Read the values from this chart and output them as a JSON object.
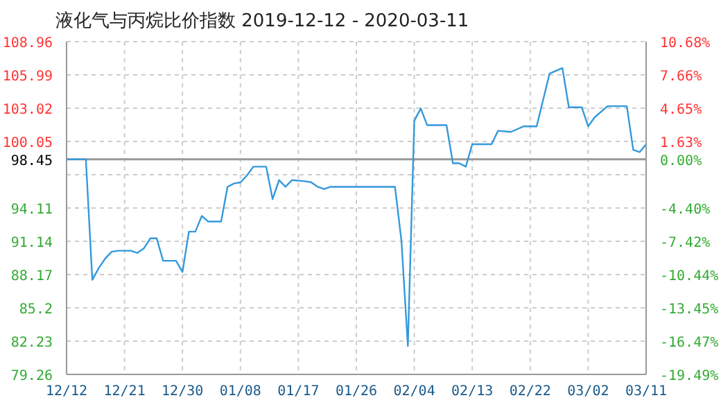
{
  "chart_data": {
    "type": "line",
    "title": "液化气与丙烷比价指数 2019-12-12 - 2020-03-11",
    "x": [
      "2019-12-12",
      "2019-12-15",
      "2019-12-16",
      "2019-12-17",
      "2019-12-18",
      "2019-12-19",
      "2019-12-20",
      "2019-12-22",
      "2019-12-23",
      "2019-12-24",
      "2019-12-25",
      "2019-12-26",
      "2019-12-27",
      "2019-12-29",
      "2019-12-30",
      "2019-12-31",
      "2020-01-01",
      "2020-01-02",
      "2020-01-03",
      "2020-01-05",
      "2020-01-06",
      "2020-01-07",
      "2020-01-08",
      "2020-01-09",
      "2020-01-10",
      "2020-01-12",
      "2020-01-13",
      "2020-01-14",
      "2020-01-15",
      "2020-01-16",
      "2020-01-18",
      "2020-01-19",
      "2020-01-20",
      "2020-01-21",
      "2020-01-22",
      "2020-02-01",
      "2020-02-02",
      "2020-02-03",
      "2020-02-04",
      "2020-02-05",
      "2020-02-06",
      "2020-02-09",
      "2020-02-10",
      "2020-02-11",
      "2020-02-12",
      "2020-02-13",
      "2020-02-16",
      "2020-02-17",
      "2020-02-19",
      "2020-02-21",
      "2020-02-23",
      "2020-02-25",
      "2020-02-27",
      "2020-02-28",
      "2020-03-01",
      "2020-03-02",
      "2020-03-03",
      "2020-03-05",
      "2020-03-08",
      "2020-03-09",
      "2020-03-10",
      "2020-03-11"
    ],
    "series": [
      {
        "color": "#3399dd",
        "values": [
          98.45,
          98.45,
          87.7,
          88.75,
          89.6,
          90.2,
          90.3,
          90.3,
          90.1,
          90.5,
          91.4,
          91.4,
          89.4,
          89.4,
          88.4,
          92.0,
          92.0,
          93.4,
          92.9,
          92.9,
          96.0,
          96.3,
          96.4,
          97.0,
          97.8,
          97.8,
          94.9,
          96.6,
          96.0,
          96.6,
          96.5,
          96.4,
          96.0,
          95.8,
          96.0,
          96.0,
          91.2,
          81.8,
          101.9,
          103.0,
          101.5,
          101.5,
          98.1,
          98.1,
          97.8,
          99.8,
          99.8,
          101.0,
          100.9,
          101.4,
          101.4,
          106.1,
          106.6,
          103.1,
          103.1,
          101.4,
          102.2,
          103.2,
          103.2,
          99.3,
          99.1,
          99.8
        ]
      }
    ],
    "xlim": [
      "2019-12-12",
      "2020-03-11"
    ],
    "xticks": [
      {
        "value": "2019-12-12",
        "label": "12/12"
      },
      {
        "value": "2019-12-21",
        "label": "12/21"
      },
      {
        "value": "2019-12-30",
        "label": "12/30"
      },
      {
        "value": "2020-01-08",
        "label": "01/08"
      },
      {
        "value": "2020-01-17",
        "label": "01/17"
      },
      {
        "value": "2020-01-26",
        "label": "01/26"
      },
      {
        "value": "2020-02-04",
        "label": "02/04"
      },
      {
        "value": "2020-02-13",
        "label": "02/13"
      },
      {
        "value": "2020-02-22",
        "label": "02/22"
      },
      {
        "value": "2020-03-02",
        "label": "03/02"
      },
      {
        "value": "2020-03-11",
        "label": "03/11"
      }
    ],
    "ylim": [
      79.26,
      108.96
    ],
    "yticks": [
      79.26,
      82.23,
      85.2,
      88.17,
      91.14,
      94.11,
      {
        "value": 97.08,
        "label": null
      },
      98.45,
      100.05,
      103.02,
      105.99,
      108.96
    ],
    "y2lim": [
      -19.49,
      10.68
    ],
    "y2ticks": [
      {
        "value": -19.49,
        "label": "-19.49%"
      },
      {
        "value": -16.47,
        "label": "-16.47%"
      },
      {
        "value": -13.45,
        "label": "-13.45%"
      },
      {
        "value": -10.44,
        "label": "-10.44%"
      },
      {
        "value": -7.42,
        "label": "-7.42%"
      },
      {
        "value": -4.4,
        "label": "-4.40%"
      },
      {
        "value": -1.39,
        "label": null
      },
      {
        "value": 0,
        "label": "0.00%"
      },
      {
        "value": 1.63,
        "label": "1.63%"
      },
      {
        "value": 4.65,
        "label": "4.65%"
      },
      {
        "value": 7.66,
        "label": "7.66%"
      },
      {
        "value": 10.68,
        "label": "10.68%"
      }
    ],
    "ref_lines": [
      {
        "axis": "y",
        "value": 98.45,
        "color": "#999999"
      }
    ],
    "grid": true,
    "marker": "none",
    "line_style": "solid"
  }
}
